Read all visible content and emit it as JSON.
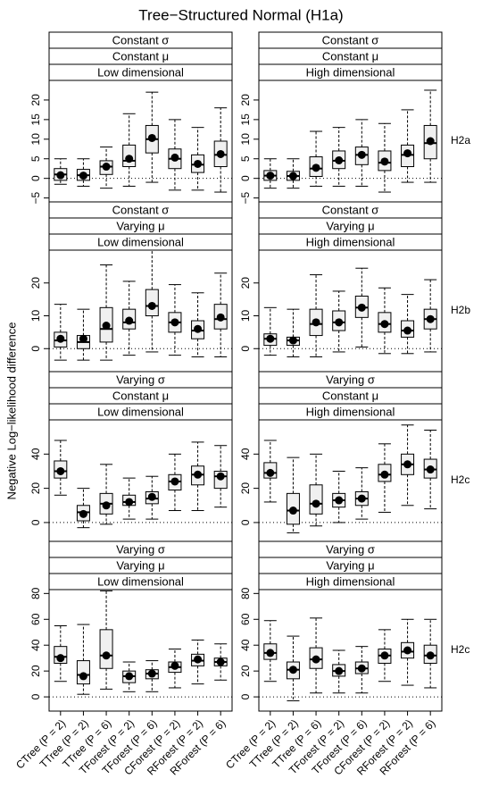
{
  "figure": {
    "title": "Tree−Structured Normal (H1a)",
    "y_label": "Negative Log−likelihood difference",
    "categories": [
      "CTree (P = 2)",
      "TTree (P = 2)",
      "TTree (P = 6)",
      "TForest (P = 2)",
      "TForest (P = 6)",
      "CForest (P = 2)",
      "RForest (P = 2)",
      "RForest (P = 6)"
    ]
  },
  "chart_data": [
    {
      "type": "box",
      "strips": [
        "Constant σ",
        "Constant μ",
        "Low dimensional"
      ],
      "ylim": [
        -6,
        25
      ],
      "yticks": [
        {
          "value": -5,
          "label": "−5"
        },
        0,
        5,
        10,
        15,
        20
      ],
      "reference_line": 0,
      "boxes": [
        {
          "min": -1.5,
          "q1": -0.5,
          "median": 1,
          "q3": 2.5,
          "max": 5,
          "mean": 0.8
        },
        {
          "min": -2,
          "q1": -0.5,
          "median": 0.8,
          "q3": 2.3,
          "max": 5,
          "mean": 0.7
        },
        {
          "min": -2.5,
          "q1": 1,
          "median": 3,
          "q3": 4.5,
          "max": 8,
          "mean": 3
        },
        {
          "min": -2,
          "q1": 3,
          "median": 4.5,
          "q3": 8.5,
          "max": 16.5,
          "mean": 5
        },
        {
          "min": -1,
          "q1": 6.5,
          "median": 10,
          "q3": 13.5,
          "max": 22,
          "mean": 10.3
        },
        {
          "min": -3,
          "q1": 2.5,
          "median": 5,
          "q3": 7.5,
          "max": 15,
          "mean": 5.3
        },
        {
          "min": -3,
          "q1": 1.5,
          "median": 3.5,
          "q3": 6,
          "max": 13,
          "mean": 3.7
        },
        {
          "min": -3.5,
          "q1": 3,
          "median": 6,
          "q3": 9.5,
          "max": 18,
          "mean": 6.2
        }
      ]
    },
    {
      "type": "box",
      "strips": [
        "Constant σ",
        "Constant μ",
        "High dimensional"
      ],
      "row_label": "H2a",
      "ylim": [
        -6,
        25
      ],
      "yticks": [
        {
          "value": -5,
          "label": "−5"
        },
        0,
        5,
        10,
        15,
        20
      ],
      "reference_line": 0,
      "boxes": [
        {
          "min": -2.5,
          "q1": -0.5,
          "median": 0.7,
          "q3": 2,
          "max": 5,
          "mean": 0.7
        },
        {
          "min": -2.5,
          "q1": -0.5,
          "median": 0.6,
          "q3": 1.8,
          "max": 5,
          "mean": 0.6
        },
        {
          "min": -2,
          "q1": 0.5,
          "median": 2.5,
          "q3": 5.5,
          "max": 12,
          "mean": 2.7
        },
        {
          "min": -2,
          "q1": 2.5,
          "median": 4.5,
          "q3": 7,
          "max": 13,
          "mean": 4.6
        },
        {
          "min": -2,
          "q1": 3.5,
          "median": 6,
          "q3": 8,
          "max": 15,
          "mean": 6
        },
        {
          "min": -3.5,
          "q1": 2,
          "median": 4,
          "q3": 7,
          "max": 14,
          "mean": 4.3
        },
        {
          "min": -1,
          "q1": 3,
          "median": 6,
          "q3": 8.5,
          "max": 17.5,
          "mean": 6.4
        },
        {
          "min": -1,
          "q1": 5,
          "median": 9,
          "q3": 13.5,
          "max": 22.5,
          "mean": 9.5
        }
      ]
    },
    {
      "type": "box",
      "strips": [
        "Constant σ",
        "Varying μ",
        "Low dimensional"
      ],
      "ylim": [
        -7,
        30
      ],
      "yticks": [
        0,
        10,
        20
      ],
      "reference_line": 0,
      "boxes": [
        {
          "min": -3.5,
          "q1": 0.5,
          "median": 2.5,
          "q3": 5,
          "max": 13.5,
          "mean": 3
        },
        {
          "min": -3.5,
          "q1": 0,
          "median": 2,
          "q3": 4,
          "max": 12,
          "mean": 3
        },
        {
          "min": -3.5,
          "q1": 2,
          "median": 6,
          "q3": 12.5,
          "max": 25.5,
          "mean": 7
        },
        {
          "min": -2,
          "q1": 6,
          "median": 8,
          "q3": 12,
          "max": 20.5,
          "mean": 8.5
        },
        {
          "min": -1,
          "q1": 10,
          "median": 13,
          "q3": 18,
          "max": 30,
          "mean": 13
        },
        {
          "min": -2,
          "q1": 5,
          "median": 8,
          "q3": 11,
          "max": 19.5,
          "mean": 8
        },
        {
          "min": -2.5,
          "q1": 3,
          "median": 5.5,
          "q3": 8.5,
          "max": 17,
          "mean": 6
        },
        {
          "min": -2.5,
          "q1": 6,
          "median": 9,
          "q3": 13.5,
          "max": 23,
          "mean": 9.5
        }
      ]
    },
    {
      "type": "box",
      "strips": [
        "Constant σ",
        "Varying μ",
        "High dimensional"
      ],
      "row_label": "H2b",
      "ylim": [
        -7,
        30
      ],
      "yticks": [
        0,
        10,
        20
      ],
      "reference_line": 0,
      "boxes": [
        {
          "min": -2,
          "q1": 1,
          "median": 3,
          "q3": 4.5,
          "max": 12.5,
          "mean": 3
        },
        {
          "min": -2.5,
          "q1": 1,
          "median": 2.5,
          "q3": 3.5,
          "max": 12,
          "mean": 2.5
        },
        {
          "min": -2.5,
          "q1": 4,
          "median": 7.5,
          "q3": 12,
          "max": 22.5,
          "mean": 8
        },
        {
          "min": -1,
          "q1": 5.5,
          "median": 8,
          "q3": 11.5,
          "max": 17.5,
          "mean": 8
        },
        {
          "min": 0.5,
          "q1": 9.5,
          "median": 12.5,
          "q3": 16,
          "max": 24.5,
          "mean": 12.5
        },
        {
          "min": -1.5,
          "q1": 5,
          "median": 7.5,
          "q3": 11,
          "max": 18.5,
          "mean": 7.5
        },
        {
          "min": -1.5,
          "q1": 3.5,
          "median": 5.5,
          "q3": 8.5,
          "max": 16.5,
          "mean": 5.5
        },
        {
          "min": -1,
          "q1": 6,
          "median": 9,
          "q3": 12,
          "max": 21,
          "mean": 9
        }
      ]
    },
    {
      "type": "box",
      "strips": [
        "Varying σ",
        "Constant μ",
        "Low dimensional"
      ],
      "ylim": [
        -11,
        60
      ],
      "yticks": [
        0,
        20,
        40
      ],
      "reference_line": 0,
      "boxes": [
        {
          "min": 16,
          "q1": 26,
          "median": 30,
          "q3": 36,
          "max": 48,
          "mean": 30
        },
        {
          "min": -3,
          "q1": 1,
          "median": 6,
          "q3": 10,
          "max": 20,
          "mean": 5
        },
        {
          "min": -1,
          "q1": 5,
          "median": 11,
          "q3": 17,
          "max": 34,
          "mean": 10
        },
        {
          "min": 2,
          "q1": 10,
          "median": 12,
          "q3": 16,
          "max": 26,
          "mean": 12
        },
        {
          "min": 2,
          "q1": 11,
          "median": 14,
          "q3": 18,
          "max": 27,
          "mean": 15
        },
        {
          "min": 7,
          "q1": 19,
          "median": 24,
          "q3": 28,
          "max": 40,
          "mean": 24
        },
        {
          "min": 7,
          "q1": 22,
          "median": 28,
          "q3": 33,
          "max": 47,
          "mean": 28
        },
        {
          "min": 9,
          "q1": 20,
          "median": 27,
          "q3": 30,
          "max": 45,
          "mean": 27
        }
      ]
    },
    {
      "type": "box",
      "strips": [
        "Varying σ",
        "Constant μ",
        "High dimensional"
      ],
      "row_label": "H2c",
      "ylim": [
        -11,
        60
      ],
      "yticks": [
        0,
        20,
        40
      ],
      "reference_line": 0,
      "boxes": [
        {
          "min": 12,
          "q1": 26,
          "median": 29,
          "q3": 35,
          "max": 48,
          "mean": 29
        },
        {
          "min": -6,
          "q1": -1,
          "median": 7,
          "q3": 17,
          "max": 38,
          "mean": 7
        },
        {
          "min": -2,
          "q1": 5,
          "median": 11,
          "q3": 22,
          "max": 40,
          "mean": 11
        },
        {
          "min": 0,
          "q1": 9,
          "median": 13,
          "q3": 17,
          "max": 30,
          "mean": 13
        },
        {
          "min": 2,
          "q1": 10,
          "median": 14,
          "q3": 18,
          "max": 32,
          "mean": 14
        },
        {
          "min": 6,
          "q1": 24,
          "median": 28,
          "q3": 34,
          "max": 46,
          "mean": 28
        },
        {
          "min": 10,
          "q1": 28,
          "median": 34,
          "q3": 40,
          "max": 57,
          "mean": 34
        },
        {
          "min": 8,
          "q1": 26,
          "median": 31,
          "q3": 37,
          "max": 54,
          "mean": 31
        }
      ]
    },
    {
      "type": "box",
      "strips": [
        "Varying σ",
        "Varying μ",
        "Low dimensional"
      ],
      "ylim": [
        -11,
        83
      ],
      "yticks": [
        0,
        20,
        40,
        60,
        80
      ],
      "reference_line": 0,
      "boxes": [
        {
          "min": 12,
          "q1": 26,
          "median": 31,
          "q3": 39,
          "max": 55,
          "mean": 30
        },
        {
          "min": 2,
          "q1": 10,
          "median": 17,
          "q3": 28,
          "max": 56,
          "mean": 16
        },
        {
          "min": 6,
          "q1": 22,
          "median": 32,
          "q3": 52,
          "max": 82,
          "mean": 32
        },
        {
          "min": 4,
          "q1": 11,
          "median": 16,
          "q3": 20,
          "max": 27,
          "mean": 16
        },
        {
          "min": 4,
          "q1": 14,
          "median": 18,
          "q3": 21,
          "max": 28,
          "mean": 18
        },
        {
          "min": 7,
          "q1": 19,
          "median": 23,
          "q3": 27,
          "max": 37,
          "mean": 24
        },
        {
          "min": 10,
          "q1": 24,
          "median": 28,
          "q3": 33,
          "max": 44,
          "mean": 29
        },
        {
          "min": 13,
          "q1": 24,
          "median": 27,
          "q3": 30,
          "max": 41,
          "mean": 27
        }
      ]
    },
    {
      "type": "box",
      "strips": [
        "Varying σ",
        "Varying μ",
        "High dimensional"
      ],
      "row_label": "H2c",
      "ylim": [
        -11,
        83
      ],
      "yticks": [
        0,
        20,
        40,
        60,
        80
      ],
      "reference_line": 0,
      "boxes": [
        {
          "min": 12,
          "q1": 29,
          "median": 34,
          "q3": 41,
          "max": 59,
          "mean": 34
        },
        {
          "min": -3,
          "q1": 14,
          "median": 21,
          "q3": 27,
          "max": 47,
          "mean": 21
        },
        {
          "min": 3,
          "q1": 22,
          "median": 29,
          "q3": 38,
          "max": 61,
          "mean": 29
        },
        {
          "min": 3,
          "q1": 16,
          "median": 20,
          "q3": 25,
          "max": 36,
          "mean": 20
        },
        {
          "min": 3,
          "q1": 18,
          "median": 22,
          "q3": 27,
          "max": 39,
          "mean": 22
        },
        {
          "min": 12,
          "q1": 26,
          "median": 32,
          "q3": 37,
          "max": 52,
          "mean": 32
        },
        {
          "min": 9,
          "q1": 30,
          "median": 35,
          "q3": 42,
          "max": 60,
          "mean": 36
        },
        {
          "min": 7,
          "q1": 26,
          "median": 32,
          "q3": 40,
          "max": 60,
          "mean": 32
        }
      ]
    }
  ]
}
